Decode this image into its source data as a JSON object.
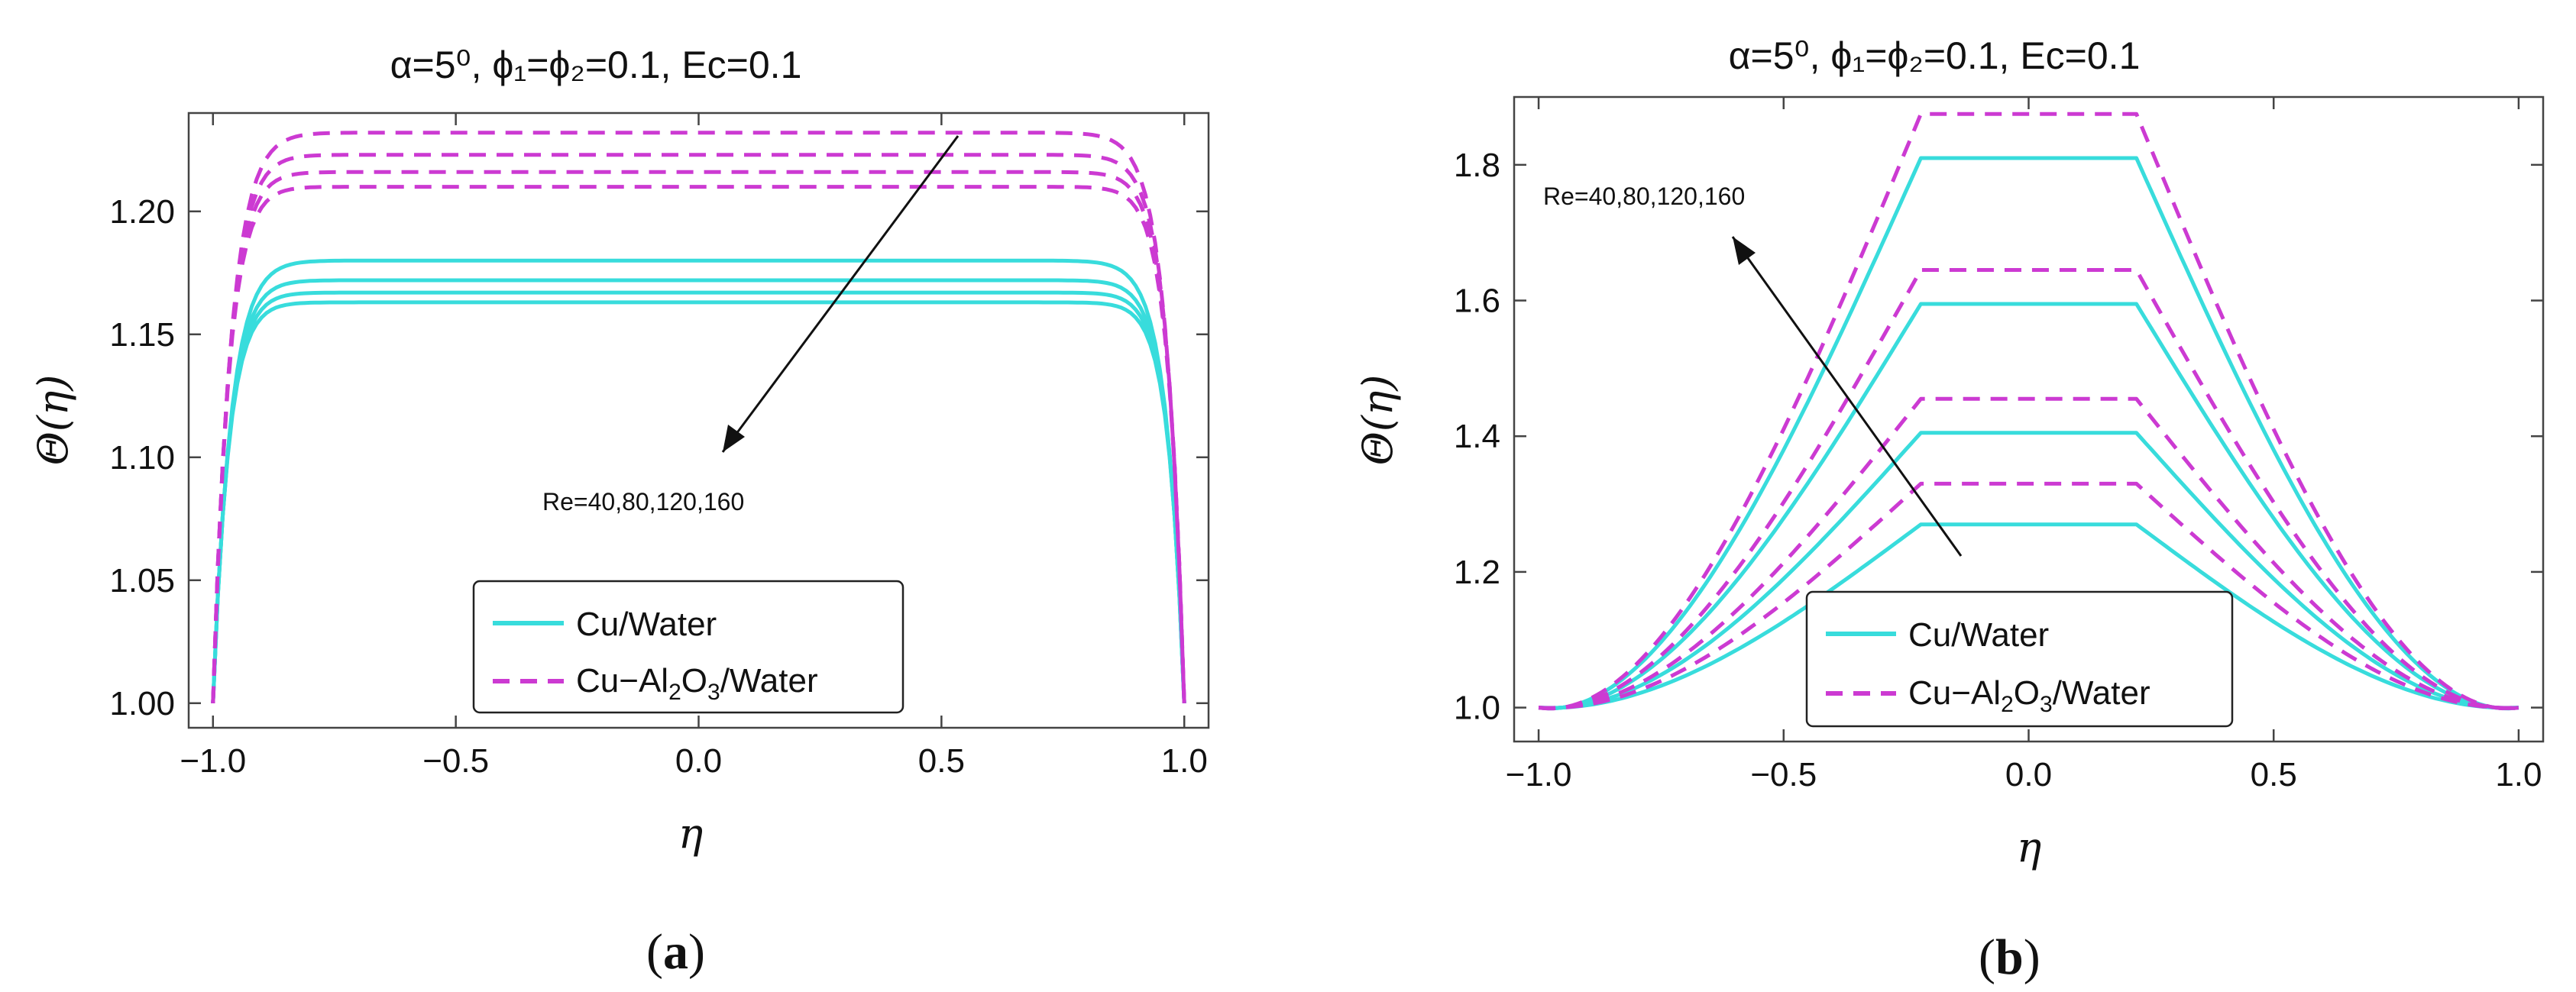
{
  "chart_data": [
    {
      "type": "line",
      "panel": "a",
      "caption_open": "(",
      "caption_letter": "a",
      "caption_close": ")",
      "title": "α=5⁰, ϕ₁=ϕ₂=0.1, Ec=0.1",
      "xlabel": "η",
      "ylabel": "Θ(η)",
      "xlim": [
        -1.05,
        1.05
      ],
      "ylim": [
        0.99,
        1.24
      ],
      "xticks": [
        -1.0,
        -0.5,
        0.0,
        0.5,
        1.0
      ],
      "xtick_labels": [
        "−1.0",
        "−0.5",
        "0.0",
        "0.5",
        "1.0"
      ],
      "yticks": [
        1.0,
        1.05,
        1.1,
        1.15,
        1.2
      ],
      "ytick_labels": [
        "1.00",
        "1.05",
        "1.10",
        "1.15",
        "1.20"
      ],
      "annotation": "Re=40,80,120,160",
      "legend": [
        "Cu/Water",
        "Cu−Al₂O₃/Water"
      ],
      "legend_position": "bottom-center",
      "series": [
        {
          "name": "Cu/Water",
          "style": "solid",
          "Re": 40,
          "peak": 1.18,
          "shape": 0.84
        },
        {
          "name": "Cu/Water",
          "style": "solid",
          "Re": 80,
          "peak": 1.172,
          "shape": 0.9
        },
        {
          "name": "Cu/Water",
          "style": "solid",
          "Re": 120,
          "peak": 1.167,
          "shape": 0.94
        },
        {
          "name": "Cu/Water",
          "style": "solid",
          "Re": 160,
          "peak": 1.163,
          "shape": 0.97
        },
        {
          "name": "Cu−Al₂O₃/Water",
          "style": "dashed",
          "Re": 40,
          "peak": 1.232,
          "shape": 0.82
        },
        {
          "name": "Cu−Al₂O₃/Water",
          "style": "dashed",
          "Re": 80,
          "peak": 1.223,
          "shape": 0.88
        },
        {
          "name": "Cu−Al₂O₃/Water",
          "style": "dashed",
          "Re": 120,
          "peak": 1.216,
          "shape": 0.92
        },
        {
          "name": "Cu−Al₂O₃/Water",
          "style": "dashed",
          "Re": 160,
          "peak": 1.21,
          "shape": 0.95
        }
      ]
    },
    {
      "type": "line",
      "panel": "b",
      "caption_open": "(",
      "caption_letter": "b",
      "caption_close": ")",
      "title": "α=5⁰, ϕ₁=ϕ₂=0.1, Ec=0.1",
      "xlabel": "η",
      "ylabel": "Θ(η)",
      "xlim": [
        -1.05,
        1.05
      ],
      "ylim": [
        0.95,
        1.9
      ],
      "xticks": [
        -1.0,
        -0.5,
        0.0,
        0.5,
        1.0
      ],
      "xtick_labels": [
        "−1.0",
        "−0.5",
        "0.0",
        "0.5",
        "1.0"
      ],
      "yticks": [
        1.0,
        1.2,
        1.4,
        1.6,
        1.8
      ],
      "ytick_labels": [
        "1.0",
        "1.2",
        "1.4",
        "1.6",
        "1.8"
      ],
      "annotation": "Re=40,80,120,160",
      "legend": [
        "Cu/Water",
        "Cu−Al₂O₃/Water"
      ],
      "legend_position": "bottom-center",
      "series": [
        {
          "name": "Cu/Water",
          "style": "solid",
          "Re": 40,
          "peak": 1.27,
          "shape": 0.22
        },
        {
          "name": "Cu/Water",
          "style": "solid",
          "Re": 80,
          "peak": 1.405,
          "shape": 0.22
        },
        {
          "name": "Cu/Water",
          "style": "solid",
          "Re": 120,
          "peak": 1.595,
          "shape": 0.22
        },
        {
          "name": "Cu/Water",
          "style": "solid",
          "Re": 160,
          "peak": 1.81,
          "shape": 0.22
        },
        {
          "name": "Cu−Al₂O₃/Water",
          "style": "dashed",
          "Re": 40,
          "peak": 1.33,
          "shape": 0.22
        },
        {
          "name": "Cu−Al₂O₃/Water",
          "style": "dashed",
          "Re": 80,
          "peak": 1.455,
          "shape": 0.22
        },
        {
          "name": "Cu−Al₂O₃/Water",
          "style": "dashed",
          "Re": 120,
          "peak": 1.645,
          "shape": 0.22
        },
        {
          "name": "Cu−Al₂O₃/Water",
          "style": "dashed",
          "Re": 160,
          "peak": 1.875,
          "shape": 0.22
        }
      ]
    }
  ],
  "colors": {
    "solid": "#38dcdc",
    "dashed": "#cc3ad2",
    "axis": "#444444",
    "text": "#111111"
  }
}
